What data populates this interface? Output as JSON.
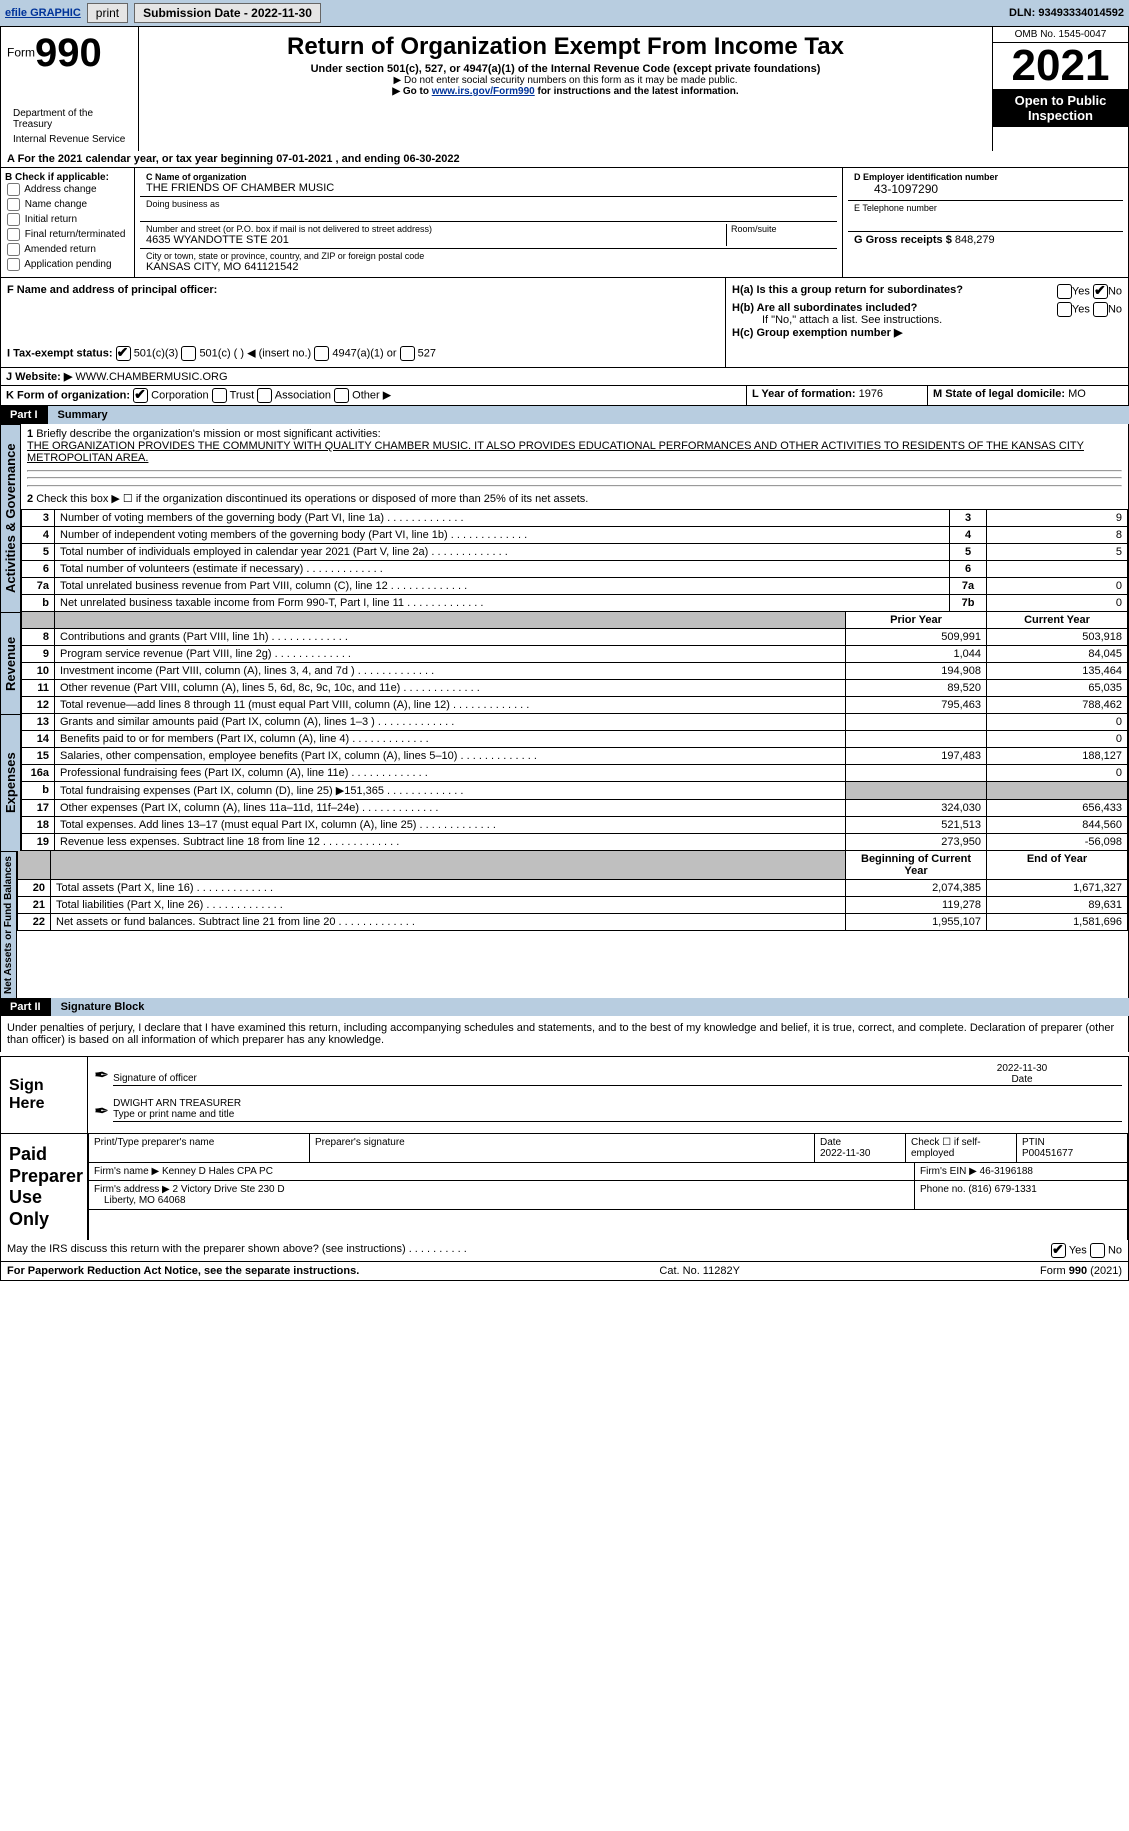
{
  "topbar": {
    "efile_label": "efile GRAPHIC",
    "print_label": "print",
    "submission_label": "Submission Date - 2022-11-30",
    "dln_label": "DLN: 93493334014592"
  },
  "header": {
    "form_label": "Form",
    "form_num": "990",
    "title": "Return of Organization Exempt From Income Tax",
    "subtitle": "Under section 501(c), 527, or 4947(a)(1) of the Internal Revenue Code (except private foundations)",
    "hint1": "▶ Do not enter social security numbers on this form as it may be made public.",
    "hint2_prefix": "▶ Go to ",
    "hint2_link": "www.irs.gov/Form990",
    "hint2_suffix": " for instructions and the latest information.",
    "dept": "Department of the Treasury",
    "irs": "Internal Revenue Service",
    "omb": "OMB No. 1545-0047",
    "year": "2021",
    "open": "Open to Public Inspection"
  },
  "section_a": {
    "line": "A For the 2021 calendar year, or tax year beginning 07-01-2021      , and ending 06-30-2022",
    "b_label": "B Check if applicable:",
    "checks": [
      "Address change",
      "Name change",
      "Initial return",
      "Final return/terminated",
      "Amended return",
      "Application pending"
    ],
    "c_label": "C Name of organization",
    "org_name": "THE FRIENDS OF CHAMBER MUSIC",
    "dba_label": "Doing business as",
    "addr_label": "Number and street (or P.O. box if mail is not delivered to street address)",
    "room_label": "Room/suite",
    "street": "4635 WYANDOTTE STE 201",
    "city_label": "City or town, state or province, country, and ZIP or foreign postal code",
    "city": "KANSAS CITY, MO  641121542",
    "d_label": "D Employer identification number",
    "ein": "43-1097290",
    "e_label": "E Telephone number",
    "g_label": "G Gross receipts $",
    "g_val": "848,279",
    "f_label": "F Name and address of principal officer:",
    "ha_label": "H(a)  Is this a group return for subordinates?",
    "hb_label": "H(b)  Are all subordinates included?",
    "h_note": "If \"No,\" attach a list. See instructions.",
    "hc_label": "H(c)  Group exemption number ▶",
    "i_label": "I     Tax-exempt status:",
    "i_501c3": "501(c)(3)",
    "i_501c": "501(c) (   ) ◀ (insert no.)",
    "i_4947": "4947(a)(1) or",
    "i_527": "527",
    "j_label": "J    Website: ▶",
    "website": "WWW.CHAMBERMUSIC.ORG",
    "k_label": "K Form of organization:",
    "k_corp": "Corporation",
    "k_trust": "Trust",
    "k_assoc": "Association",
    "k_other": "Other ▶",
    "l_label": "L Year of formation:",
    "l_val": "1976",
    "m_label": "M State of legal domicile:",
    "m_val": "MO",
    "yes": "Yes",
    "no": "No"
  },
  "part1": {
    "num": "Part I",
    "title": "Summary",
    "q1_label": "1",
    "q1_text": "Briefly describe the organization's mission or most significant activities:",
    "q1_answer": "THE ORGANIZATION PROVIDES THE COMMUNITY WITH QUALITY CHAMBER MUSIC. IT ALSO PROVIDES EDUCATIONAL PERFORMANCES AND OTHER ACTIVITIES TO RESIDENTS OF THE KANSAS CITY METROPOLITAN AREA.",
    "q2_label": "2",
    "q2_text": "Check this box ▶ ☐  if the organization discontinued its operations or disposed of more than 25% of its net assets.",
    "side_ag": "Activities & Governance",
    "side_rev": "Revenue",
    "side_exp": "Expenses",
    "side_na": "Net Assets or Fund Balances"
  },
  "lines_ag": [
    {
      "n": "3",
      "t": "Number of voting members of the governing body (Part VI, line 1a)",
      "box": "3",
      "v": "9"
    },
    {
      "n": "4",
      "t": "Number of independent voting members of the governing body (Part VI, line 1b)",
      "box": "4",
      "v": "8"
    },
    {
      "n": "5",
      "t": "Total number of individuals employed in calendar year 2021 (Part V, line 2a)",
      "box": "5",
      "v": "5"
    },
    {
      "n": "6",
      "t": "Total number of volunteers (estimate if necessary)",
      "box": "6",
      "v": ""
    },
    {
      "n": "7a",
      "t": "Total unrelated business revenue from Part VIII, column (C), line 12",
      "box": "7a",
      "v": "0"
    },
    {
      "n": "b",
      "t": "Net unrelated business taxable income from Form 990-T, Part I, line 11",
      "box": "7b",
      "v": "0"
    }
  ],
  "rev_header": {
    "py": "Prior Year",
    "cy": "Current Year"
  },
  "lines_rev": [
    {
      "n": "8",
      "t": "Contributions and grants (Part VIII, line 1h)",
      "py": "509,991",
      "cy": "503,918"
    },
    {
      "n": "9",
      "t": "Program service revenue (Part VIII, line 2g)",
      "py": "1,044",
      "cy": "84,045"
    },
    {
      "n": "10",
      "t": "Investment income (Part VIII, column (A), lines 3, 4, and 7d )",
      "py": "194,908",
      "cy": "135,464"
    },
    {
      "n": "11",
      "t": "Other revenue (Part VIII, column (A), lines 5, 6d, 8c, 9c, 10c, and 11e)",
      "py": "89,520",
      "cy": "65,035"
    },
    {
      "n": "12",
      "t": "Total revenue—add lines 8 through 11 (must equal Part VIII, column (A), line 12)",
      "py": "795,463",
      "cy": "788,462"
    }
  ],
  "lines_exp": [
    {
      "n": "13",
      "t": "Grants and similar amounts paid (Part IX, column (A), lines 1–3 )",
      "py": "",
      "cy": "0"
    },
    {
      "n": "14",
      "t": "Benefits paid to or for members (Part IX, column (A), line 4)",
      "py": "",
      "cy": "0"
    },
    {
      "n": "15",
      "t": "Salaries, other compensation, employee benefits (Part IX, column (A), lines 5–10)",
      "py": "197,483",
      "cy": "188,127"
    },
    {
      "n": "16a",
      "t": "Professional fundraising fees (Part IX, column (A), line 11e)",
      "py": "",
      "cy": "0"
    },
    {
      "n": "b",
      "t": "Total fundraising expenses (Part IX, column (D), line 25) ▶151,365",
      "py": "grey",
      "cy": "grey"
    },
    {
      "n": "17",
      "t": "Other expenses (Part IX, column (A), lines 11a–11d, 11f–24e)",
      "py": "324,030",
      "cy": "656,433"
    },
    {
      "n": "18",
      "t": "Total expenses. Add lines 13–17 (must equal Part IX, column (A), line 25)",
      "py": "521,513",
      "cy": "844,560"
    },
    {
      "n": "19",
      "t": "Revenue less expenses. Subtract line 18 from line 12",
      "py": "273,950",
      "cy": "-56,098"
    }
  ],
  "na_header": {
    "py": "Beginning of Current Year",
    "cy": "End of Year"
  },
  "lines_na": [
    {
      "n": "20",
      "t": "Total assets (Part X, line 16)",
      "py": "2,074,385",
      "cy": "1,671,327"
    },
    {
      "n": "21",
      "t": "Total liabilities (Part X, line 26)",
      "py": "119,278",
      "cy": "89,631"
    },
    {
      "n": "22",
      "t": "Net assets or fund balances. Subtract line 21 from line 20",
      "py": "1,955,107",
      "cy": "1,581,696"
    }
  ],
  "part2": {
    "num": "Part II",
    "title": "Signature Block",
    "decl": "Under penalties of perjury, I declare that I have examined this return, including accompanying schedules and statements, and to the best of my knowledge and belief, it is true, correct, and complete. Declaration of preparer (other than officer) is based on all information of which preparer has any knowledge.",
    "sign_here": "Sign Here",
    "sig_officer": "Signature of officer",
    "date_label": "Date",
    "sig_date": "2022-11-30",
    "name_title": "DWIGHT ARN  TREASURER",
    "name_title_label": "Type or print name and title",
    "prep_use": "Paid Preparer Use Only",
    "prep_name_label": "Print/Type preparer's name",
    "prep_sig_label": "Preparer's signature",
    "prep_date_label": "Date",
    "prep_date": "2022-11-30",
    "check_if": "Check ☐ if self-employed",
    "ptin_label": "PTIN",
    "ptin": "P00451677",
    "firm_name_label": "Firm's name    ▶",
    "firm_name": "Kenney D Hales CPA PC",
    "firm_ein_label": "Firm's EIN ▶",
    "firm_ein": "46-3196188",
    "firm_addr_label": "Firm's address ▶",
    "firm_addr1": "2 Victory Drive Ste 230 D",
    "firm_addr2": "Liberty, MO  64068",
    "phone_label": "Phone no.",
    "phone": "(816) 679-1331",
    "may_irs": "May the IRS discuss this return with the preparer shown above? (see instructions)",
    "yes": "Yes",
    "no": "No"
  },
  "footer": {
    "pra": "For Paperwork Reduction Act Notice, see the separate instructions.",
    "cat": "Cat. No. 11282Y",
    "form": "Form 990 (2021)"
  }
}
